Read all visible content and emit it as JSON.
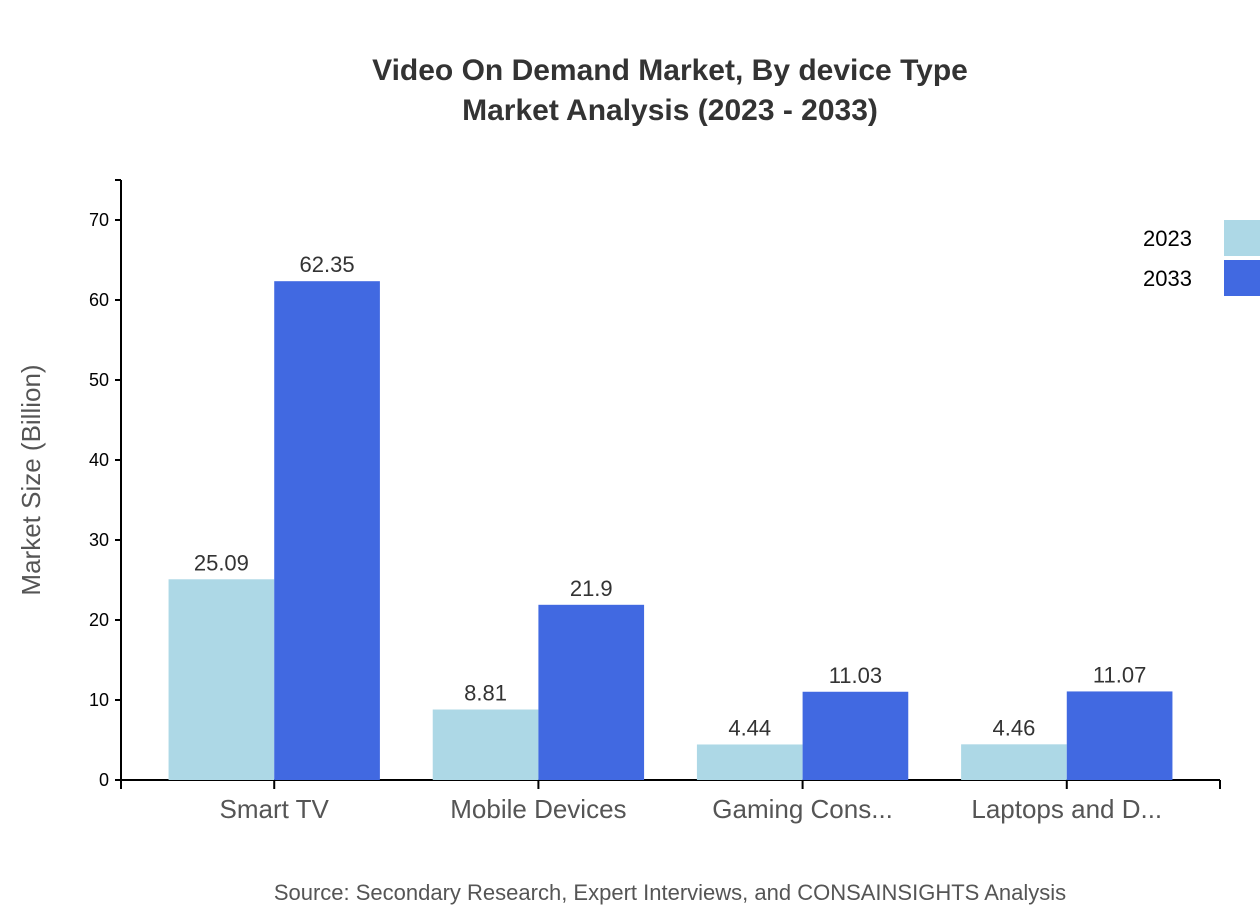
{
  "chart_data": {
    "type": "bar",
    "title": [
      "Video On Demand Market, By device Type",
      "Market Analysis (2023 - 2033)"
    ],
    "xlabel": "",
    "ylabel": "Market Size (Billion)",
    "ylim": [
      0,
      75
    ],
    "yticks": [
      0,
      10,
      20,
      30,
      40,
      50,
      60,
      70
    ],
    "categories": [
      "Smart TV",
      "Mobile Devices",
      "Gaming Cons...",
      "Laptops and D..."
    ],
    "series": [
      {
        "name": "2023",
        "color": "#add8e6",
        "values": [
          25.09,
          8.81,
          4.44,
          4.46
        ]
      },
      {
        "name": "2033",
        "color": "#4169e1",
        "values": [
          62.35,
          21.9,
          11.03,
          11.07
        ]
      }
    ],
    "legend_position": "top-right",
    "grid": false,
    "source": "Source: Secondary Research, Expert Interviews, and CONSAINSIGHTS Analysis"
  }
}
